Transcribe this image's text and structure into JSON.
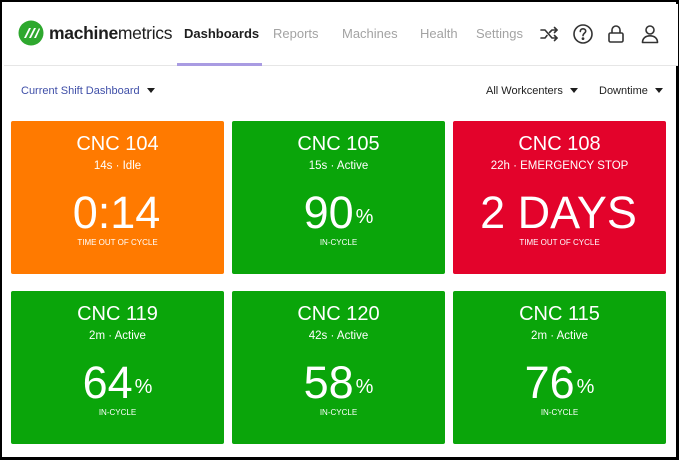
{
  "app": {
    "logo_bold": "machine",
    "logo_rest": "metrics"
  },
  "nav": {
    "items": [
      {
        "label": "Dashboards",
        "active": true
      },
      {
        "label": "Reports",
        "active": false
      },
      {
        "label": "Machines",
        "active": false
      },
      {
        "label": "Health",
        "active": false
      },
      {
        "label": "Settings",
        "active": false
      }
    ],
    "icons": [
      "shuffle-icon",
      "help-icon",
      "lock-icon",
      "user-icon"
    ]
  },
  "toolbar": {
    "dashboard_select": "Current Shift Dashboard",
    "workcenter_filter": "All Workcenters",
    "metric_filter": "Downtime"
  },
  "colors": {
    "idle": "#ff7a00",
    "active": "#0aa50a",
    "emergency": "#e3032b"
  },
  "tiles": [
    {
      "name": "CNC 104",
      "status": "14s · Idle",
      "value": "0:14",
      "unit": "",
      "caption": "TIME OUT OF CYCLE",
      "state": "idle"
    },
    {
      "name": "CNC 105",
      "status": "15s · Active",
      "value": "90",
      "unit": "%",
      "caption": "IN-CYCLE",
      "state": "active"
    },
    {
      "name": "CNC 108",
      "status": "22h · EMERGENCY STOP",
      "value": "2 DAYS",
      "unit": "",
      "caption": "TIME OUT OF CYCLE",
      "state": "emergency"
    },
    {
      "name": "CNC 119",
      "status": "2m · Active",
      "value": "64",
      "unit": "%",
      "caption": "IN-CYCLE",
      "state": "active"
    },
    {
      "name": "CNC 120",
      "status": "42s · Active",
      "value": "58",
      "unit": "%",
      "caption": "IN-CYCLE",
      "state": "active"
    },
    {
      "name": "CNC 115",
      "status": "2m · Active",
      "value": "76",
      "unit": "%",
      "caption": "IN-CYCLE",
      "state": "active"
    }
  ]
}
